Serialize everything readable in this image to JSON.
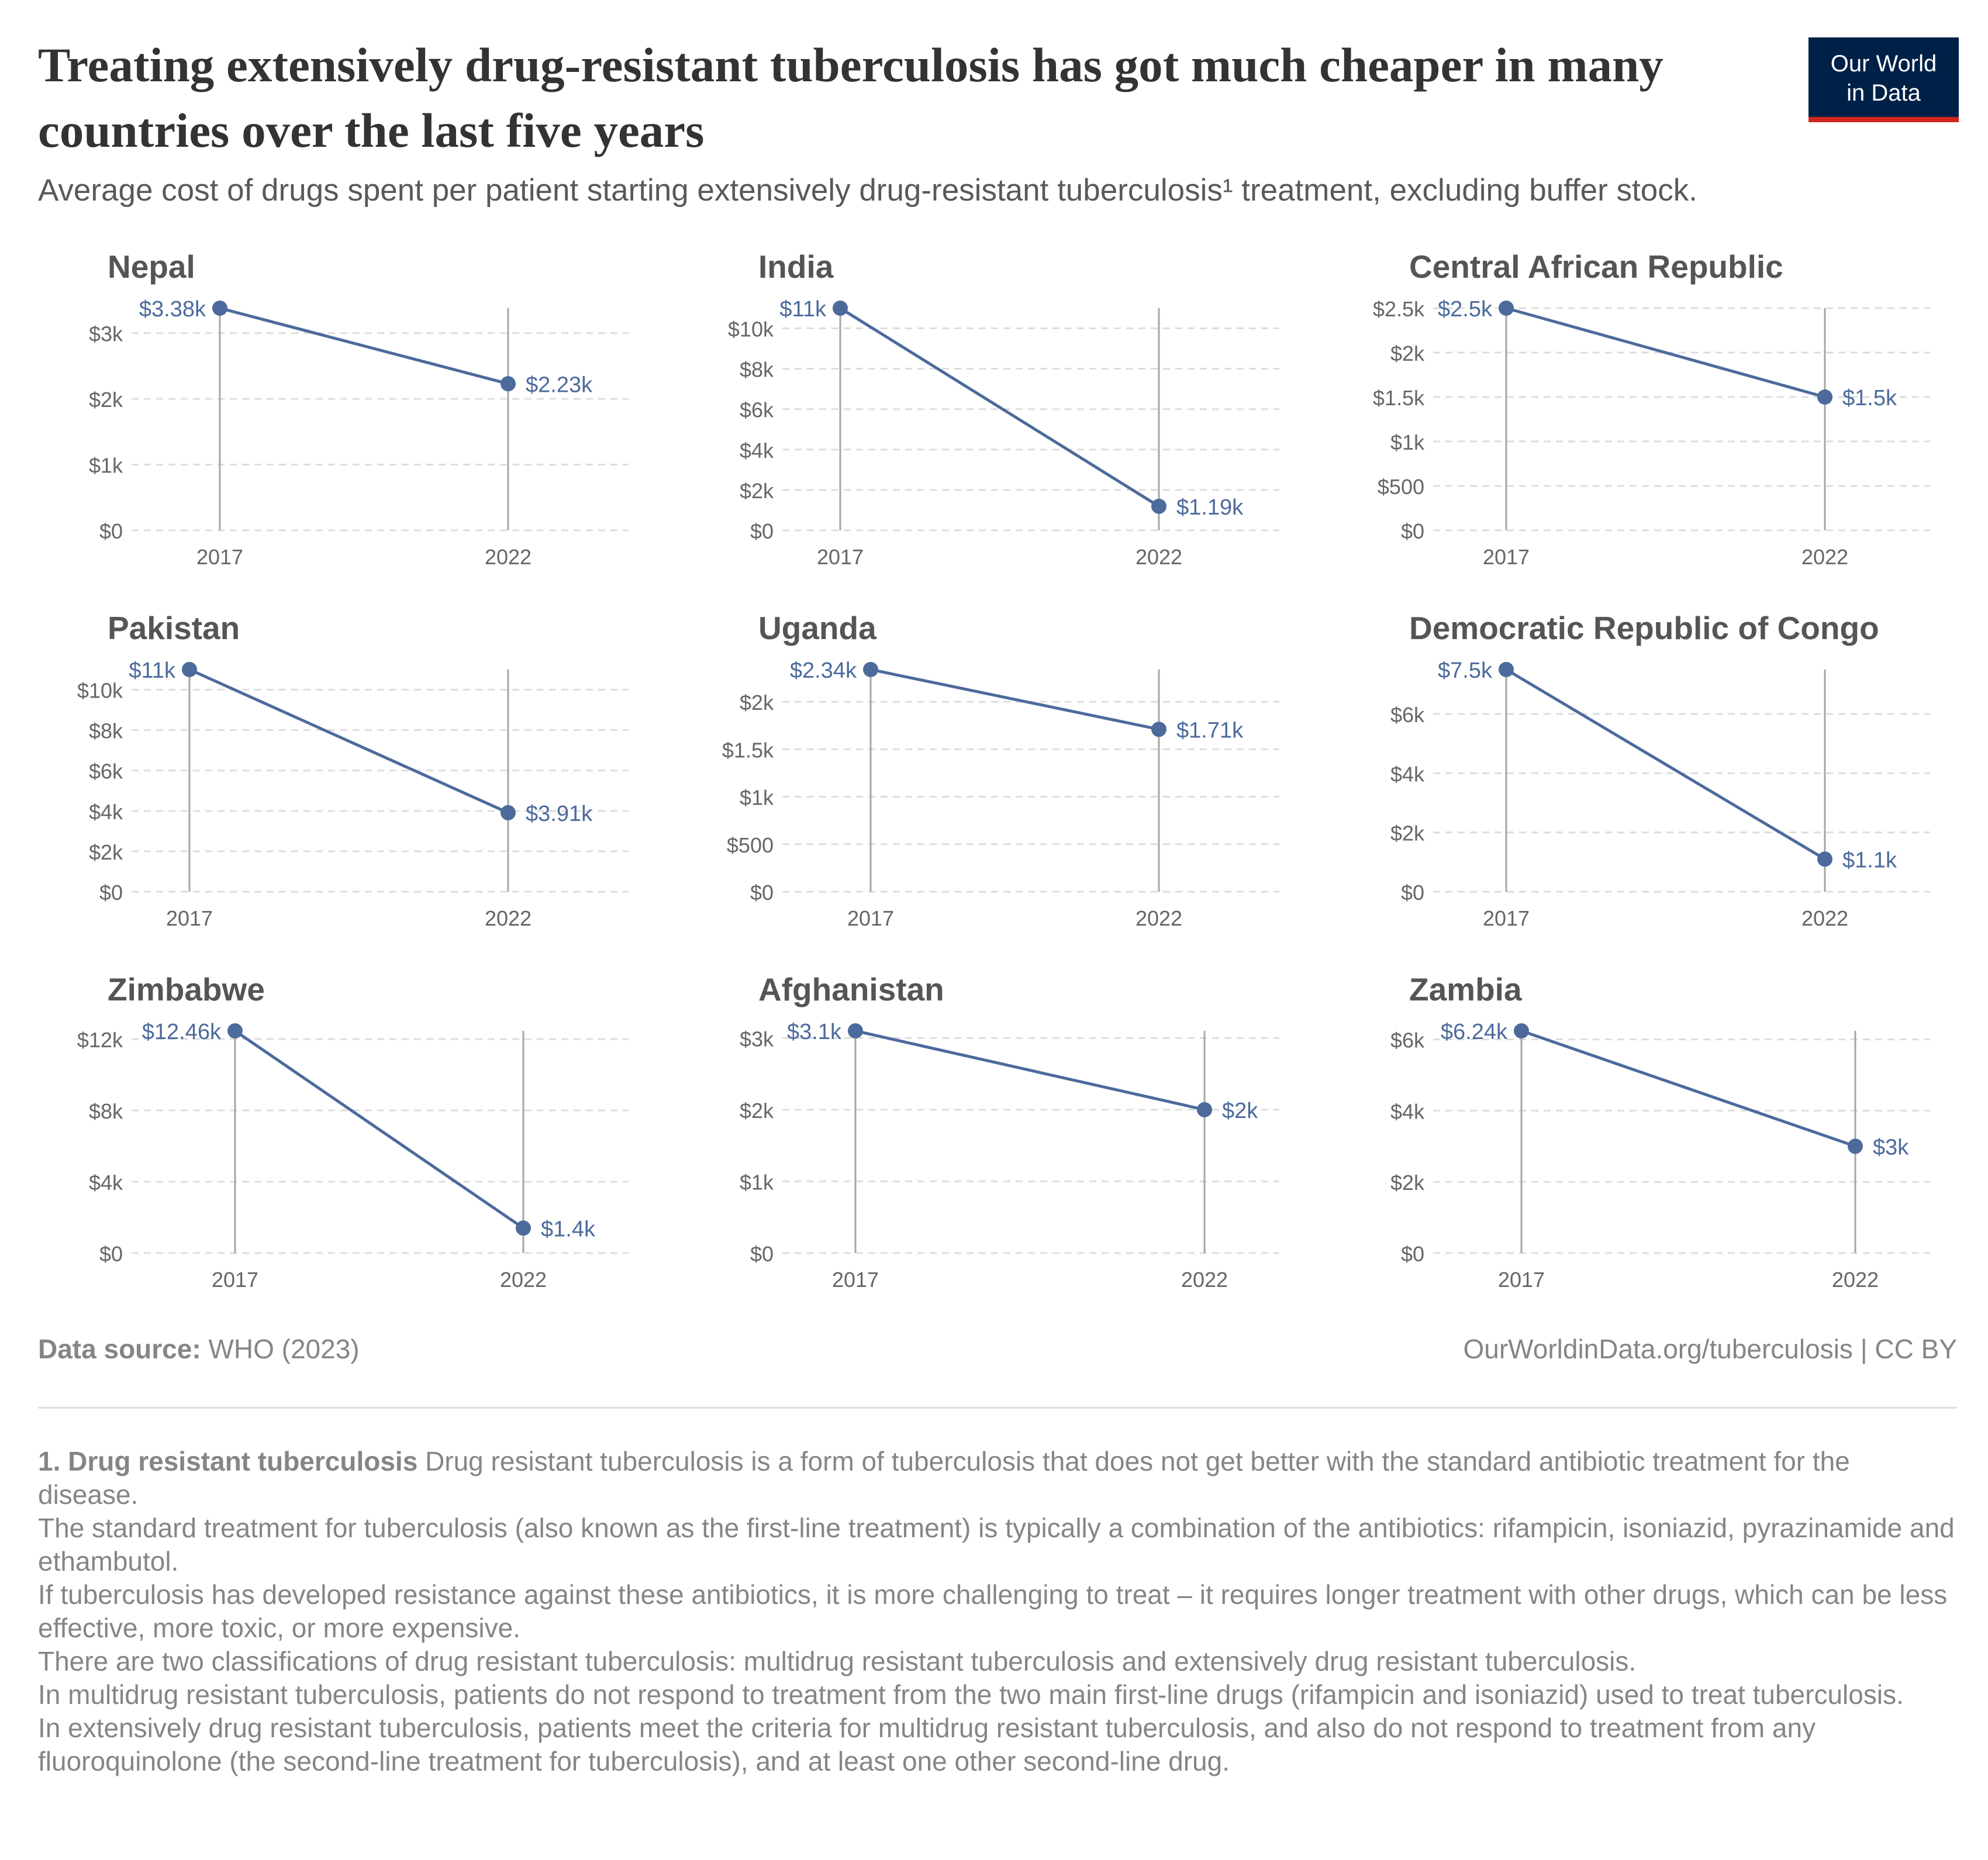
{
  "header": {
    "title": "Treating extensively drug-resistant tuberculosis has got much cheaper in many countries over the last five years",
    "subtitle": "Average cost of drugs spent per patient starting extensively drug-resistant tuberculosis¹ treatment, excluding buffer stock.",
    "logo_line1": "Our World",
    "logo_line2": "in Data"
  },
  "colors": {
    "series": "#4c6a9c",
    "label": "#4c6a9c",
    "axis_text": "#666666",
    "gridline": "#dddddd",
    "marker_line": "#a6a6a6",
    "logo_bg": "#002147",
    "logo_accent": "#ce261e"
  },
  "chart_data": [
    {
      "type": "line",
      "title": "Nepal",
      "x": [
        "2017",
        "2022"
      ],
      "values": [
        3380,
        2230
      ],
      "labels": [
        "$3.38k",
        "$2.23k"
      ],
      "yticks": [
        0,
        1000,
        2000,
        3000
      ],
      "ytick_labels": [
        "$0",
        "$1k",
        "$2k",
        "$3k"
      ],
      "ylim": [
        0,
        3380
      ],
      "grid": true
    },
    {
      "type": "line",
      "title": "India",
      "x": [
        "2017",
        "2022"
      ],
      "values": [
        11000,
        1190
      ],
      "labels": [
        "$11k",
        "$1.19k"
      ],
      "yticks": [
        0,
        2000,
        4000,
        6000,
        8000,
        10000
      ],
      "ytick_labels": [
        "$0",
        "$2k",
        "$4k",
        "$6k",
        "$8k",
        "$10k"
      ],
      "ylim": [
        0,
        11000
      ],
      "grid": true
    },
    {
      "type": "line",
      "title": "Central African Republic",
      "x": [
        "2017",
        "2022"
      ],
      "values": [
        2500,
        1500
      ],
      "labels": [
        "$2.5k",
        "$1.5k"
      ],
      "yticks": [
        0,
        500,
        1000,
        1500,
        2000,
        2500
      ],
      "ytick_labels": [
        "$0",
        "$500",
        "$1k",
        "$1.5k",
        "$2k",
        "$2.5k"
      ],
      "ylim": [
        0,
        2500
      ],
      "grid": true
    },
    {
      "type": "line",
      "title": "Pakistan",
      "x": [
        "2017",
        "2022"
      ],
      "values": [
        11000,
        3910
      ],
      "labels": [
        "$11k",
        "$3.91k"
      ],
      "yticks": [
        0,
        2000,
        4000,
        6000,
        8000,
        10000
      ],
      "ytick_labels": [
        "$0",
        "$2k",
        "$4k",
        "$6k",
        "$8k",
        "$10k"
      ],
      "ylim": [
        0,
        11000
      ],
      "grid": true
    },
    {
      "type": "line",
      "title": "Uganda",
      "x": [
        "2017",
        "2022"
      ],
      "values": [
        2340,
        1710
      ],
      "labels": [
        "$2.34k",
        "$1.71k"
      ],
      "yticks": [
        0,
        500,
        1000,
        1500,
        2000
      ],
      "ytick_labels": [
        "$0",
        "$500",
        "$1k",
        "$1.5k",
        "$2k"
      ],
      "ylim": [
        0,
        2340
      ],
      "grid": true
    },
    {
      "type": "line",
      "title": "Democratic Republic of Congo",
      "x": [
        "2017",
        "2022"
      ],
      "values": [
        7500,
        1100
      ],
      "labels": [
        "$7.5k",
        "$1.1k"
      ],
      "yticks": [
        0,
        2000,
        4000,
        6000
      ],
      "ytick_labels": [
        "$0",
        "$2k",
        "$4k",
        "$6k"
      ],
      "ylim": [
        0,
        7500
      ],
      "grid": true
    },
    {
      "type": "line",
      "title": "Zimbabwe",
      "x": [
        "2017",
        "2022"
      ],
      "values": [
        12460,
        1400
      ],
      "labels": [
        "$12.46k",
        "$1.4k"
      ],
      "yticks": [
        0,
        4000,
        8000,
        12000
      ],
      "ytick_labels": [
        "$0",
        "$4k",
        "$8k",
        "$12k"
      ],
      "ylim": [
        0,
        12460
      ],
      "grid": true
    },
    {
      "type": "line",
      "title": "Afghanistan",
      "x": [
        "2017",
        "2022"
      ],
      "values": [
        3100,
        2000
      ],
      "labels": [
        "$3.1k",
        "$2k"
      ],
      "yticks": [
        0,
        1000,
        2000,
        3000
      ],
      "ytick_labels": [
        "$0",
        "$1k",
        "$2k",
        "$3k"
      ],
      "ylim": [
        0,
        3100
      ],
      "grid": true
    },
    {
      "type": "line",
      "title": "Zambia",
      "x": [
        "2017",
        "2022"
      ],
      "values": [
        6240,
        3000
      ],
      "labels": [
        "$6.24k",
        "$3k"
      ],
      "yticks": [
        0,
        2000,
        4000,
        6000
      ],
      "ytick_labels": [
        "$0",
        "$2k",
        "$4k",
        "$6k"
      ],
      "ylim": [
        0,
        6240
      ],
      "grid": true
    }
  ],
  "footer": {
    "source_label": "Data source:",
    "source_value": "WHO (2023)",
    "credit": "OurWorldinData.org/tuberculosis | CC BY"
  },
  "notes": {
    "heading": "1. Drug resistant tuberculosis",
    "p1": "Drug resistant tuberculosis is a form of tuberculosis that does not get better with the standard antibiotic treatment for the disease.",
    "p2": "The standard treatment for tuberculosis (also known as the first-line treatment) is typically a combination of the antibiotics: rifampicin, isoniazid, pyrazinamide and ethambutol.",
    "p3": "If tuberculosis has developed resistance against these antibiotics, it is more challenging to treat – it requires longer treatment with other drugs, which can be less effective, more toxic, or more expensive.",
    "p4": "There are two classifications of drug resistant tuberculosis: multidrug resistant tuberculosis and extensively drug resistant tuberculosis.",
    "p5": "In multidrug resistant tuberculosis, patients do not respond to treatment from the two main first-line drugs (rifampicin and isoniazid) used to treat tuberculosis.",
    "p6": "In extensively drug resistant tuberculosis, patients meet the criteria for multidrug resistant tuberculosis, and also do not respond to treatment from any fluoroquinolone (the second-line treatment for tuberculosis), and at least one other second-line drug."
  }
}
